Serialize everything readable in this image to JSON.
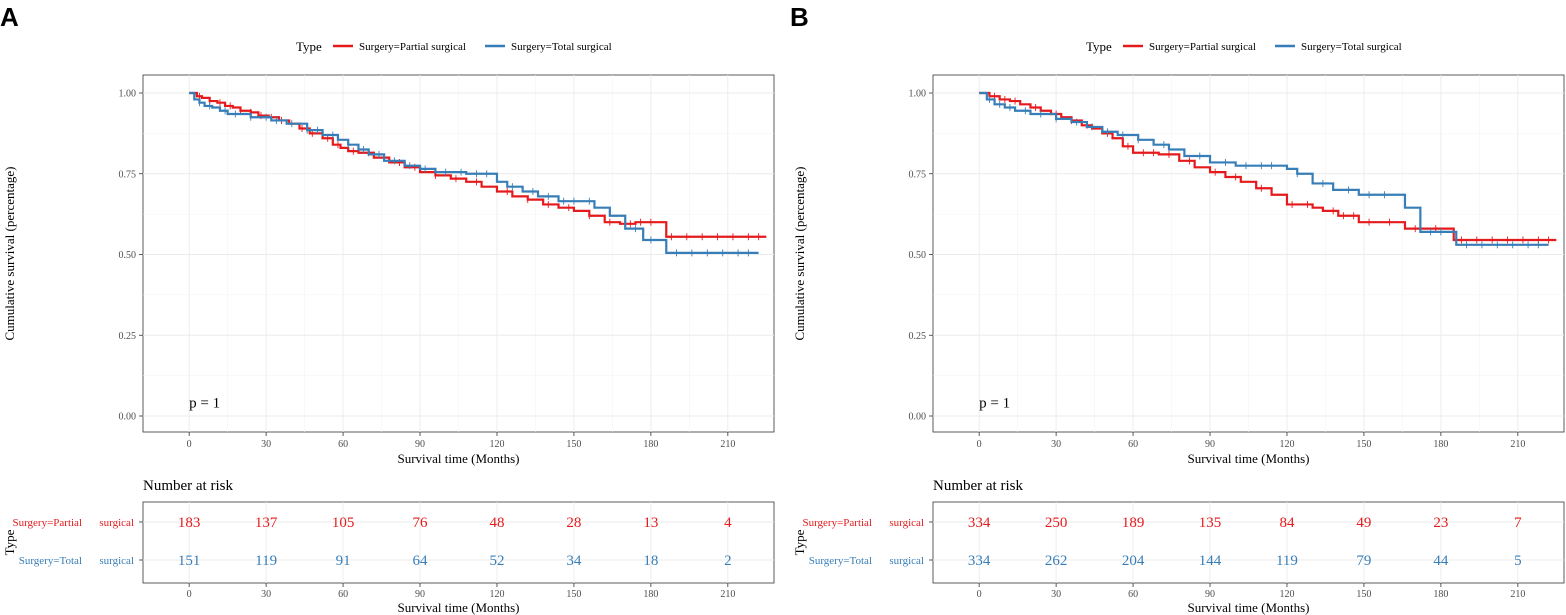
{
  "figure": {
    "colors": {
      "partial": "#e41a1c",
      "total": "#377eb8",
      "grid": "#ebebeb",
      "axis": "#333333",
      "tick_text": "#4d4d4d"
    }
  },
  "chart_data": [
    {
      "type": "line",
      "subtype": "kaplan-meier",
      "panel": "A",
      "legend_title": "Type",
      "legend": [
        "Surgery=Partial surgical",
        "Surgery=Total surgical"
      ],
      "xlabel": "Survival time (Months)",
      "ylabel": "Cumulative survival (percentage)",
      "xlim": [
        -18,
        228
      ],
      "ylim": [
        0,
        1
      ],
      "xticks": [
        0,
        30,
        60,
        90,
        120,
        150,
        180,
        210
      ],
      "yticks": [
        "0.00",
        "0.25",
        "0.50",
        "0.75",
        "1.00"
      ],
      "pvalue": "p = 1",
      "series": [
        {
          "name": "Surgery=Partial surgical",
          "x": [
            0,
            3,
            5,
            8,
            11,
            14,
            17,
            20,
            24,
            27,
            31,
            35,
            39,
            43,
            47,
            52,
            56,
            59,
            62,
            66,
            72,
            78,
            84,
            90,
            96,
            102,
            108,
            114,
            120,
            126,
            132,
            138,
            144,
            150,
            156,
            162,
            168,
            174,
            186,
            225
          ],
          "y": [
            1.0,
            0.99,
            0.985,
            0.975,
            0.97,
            0.96,
            0.955,
            0.945,
            0.94,
            0.93,
            0.925,
            0.915,
            0.905,
            0.89,
            0.875,
            0.86,
            0.84,
            0.83,
            0.82,
            0.815,
            0.8,
            0.785,
            0.77,
            0.755,
            0.745,
            0.735,
            0.725,
            0.71,
            0.695,
            0.68,
            0.67,
            0.655,
            0.645,
            0.635,
            0.62,
            0.6,
            0.595,
            0.6,
            0.555,
            0.555
          ],
          "censor": [
            4,
            8,
            12,
            16,
            20,
            24,
            28,
            32,
            36,
            44,
            48,
            54,
            58,
            64,
            70,
            76,
            82,
            88,
            96,
            104,
            112,
            124,
            132,
            140,
            148,
            156,
            164,
            172,
            176,
            180,
            188,
            194,
            200,
            206,
            212,
            218,
            222
          ]
        },
        {
          "name": "Surgery=Total surgical",
          "x": [
            0,
            2,
            4,
            6,
            9,
            12,
            15,
            24,
            32,
            38,
            46,
            52,
            58,
            62,
            66,
            70,
            76,
            84,
            90,
            96,
            108,
            120,
            124,
            130,
            136,
            144,
            154,
            158,
            164,
            170,
            177,
            186,
            222
          ],
          "y": [
            1.0,
            0.98,
            0.97,
            0.96,
            0.955,
            0.945,
            0.935,
            0.925,
            0.915,
            0.905,
            0.885,
            0.87,
            0.855,
            0.84,
            0.825,
            0.81,
            0.79,
            0.775,
            0.765,
            0.755,
            0.75,
            0.725,
            0.71,
            0.695,
            0.68,
            0.665,
            0.665,
            0.645,
            0.62,
            0.58,
            0.545,
            0.505,
            0.505
          ],
          "censor": [
            4,
            8,
            14,
            18,
            24,
            30,
            34,
            40,
            46,
            50,
            56,
            62,
            68,
            74,
            80,
            86,
            92,
            100,
            106,
            112,
            116,
            126,
            134,
            140,
            146,
            150,
            156,
            174,
            180,
            190,
            196,
            202,
            208,
            214,
            218
          ]
        }
      ]
    },
    {
      "type": "line",
      "subtype": "kaplan-meier",
      "panel": "B",
      "legend_title": "Type",
      "legend": [
        "Surgery=Partial surgical",
        "Surgery=Total surgical"
      ],
      "xlabel": "Survival time (Months)",
      "ylabel": "Cumulative survival (percentage)",
      "xlim": [
        -18,
        228
      ],
      "ylim": [
        0,
        1
      ],
      "xticks": [
        0,
        30,
        60,
        90,
        120,
        150,
        180,
        210
      ],
      "yticks": [
        "0.00",
        "0.25",
        "0.50",
        "0.75",
        "1.00"
      ],
      "pvalue": "p = 1",
      "series": [
        {
          "name": "Surgery=Partial surgical",
          "x": [
            0,
            4,
            8,
            12,
            16,
            20,
            24,
            28,
            32,
            36,
            40,
            44,
            48,
            52,
            56,
            60,
            70,
            78,
            84,
            90,
            96,
            102,
            108,
            114,
            120,
            130,
            134,
            140,
            148,
            156,
            166,
            176,
            185,
            225
          ],
          "y": [
            1.0,
            0.99,
            0.98,
            0.975,
            0.965,
            0.955,
            0.945,
            0.935,
            0.925,
            0.915,
            0.9,
            0.89,
            0.875,
            0.86,
            0.835,
            0.815,
            0.81,
            0.79,
            0.77,
            0.755,
            0.74,
            0.725,
            0.705,
            0.685,
            0.655,
            0.645,
            0.635,
            0.62,
            0.6,
            0.6,
            0.58,
            0.58,
            0.545,
            0.545
          ],
          "censor": [
            6,
            10,
            14,
            22,
            30,
            36,
            42,
            50,
            58,
            64,
            68,
            74,
            82,
            92,
            100,
            110,
            122,
            128,
            138,
            142,
            146,
            152,
            160,
            170,
            178,
            188,
            194,
            200,
            206,
            212,
            218,
            222
          ]
        },
        {
          "name": "Surgery=Total surgical",
          "x": [
            0,
            3,
            6,
            10,
            14,
            20,
            30,
            36,
            42,
            48,
            54,
            62,
            68,
            74,
            80,
            90,
            100,
            120,
            124,
            130,
            138,
            148,
            160,
            166,
            172,
            186,
            222
          ],
          "y": [
            1.0,
            0.98,
            0.965,
            0.955,
            0.945,
            0.935,
            0.92,
            0.91,
            0.895,
            0.88,
            0.87,
            0.855,
            0.84,
            0.825,
            0.805,
            0.785,
            0.775,
            0.765,
            0.75,
            0.72,
            0.7,
            0.685,
            0.685,
            0.645,
            0.57,
            0.53,
            0.53
          ],
          "censor": [
            4,
            8,
            12,
            18,
            24,
            30,
            38,
            44,
            50,
            56,
            62,
            72,
            86,
            96,
            104,
            110,
            114,
            124,
            134,
            144,
            152,
            158,
            176,
            180,
            190,
            196,
            202,
            208,
            214,
            218
          ]
        }
      ]
    }
  ],
  "panels": [
    {
      "letter": "A",
      "risk_table": {
        "title": "Number at risk",
        "ylabel": "Type",
        "row_labels": [
          [
            "Surgery=Partial",
            "surgical"
          ],
          [
            "Surgery=Total",
            "surgical"
          ]
        ],
        "xticks": [
          0,
          30,
          60,
          90,
          120,
          150,
          180,
          210
        ],
        "xlabel": "Survival time (Months)",
        "rows": [
          [
            "183",
            "137",
            "105",
            "76",
            "48",
            "28",
            "13",
            "4"
          ],
          [
            "151",
            "119",
            "91",
            "64",
            "52",
            "34",
            "18",
            "2"
          ]
        ]
      }
    },
    {
      "letter": "B",
      "risk_table": {
        "title": "Number at risk",
        "ylabel": "Type",
        "row_labels": [
          [
            "Surgery=Partial",
            "surgical"
          ],
          [
            "Surgery=Total",
            "surgical"
          ]
        ],
        "xticks": [
          0,
          30,
          60,
          90,
          120,
          150,
          180,
          210
        ],
        "xlabel": "Survival time (Months)",
        "rows": [
          [
            "334",
            "250",
            "189",
            "135",
            "84",
            "49",
            "23",
            "7"
          ],
          [
            "334",
            "262",
            "204",
            "144",
            "119",
            "79",
            "44",
            "5"
          ]
        ]
      }
    }
  ]
}
